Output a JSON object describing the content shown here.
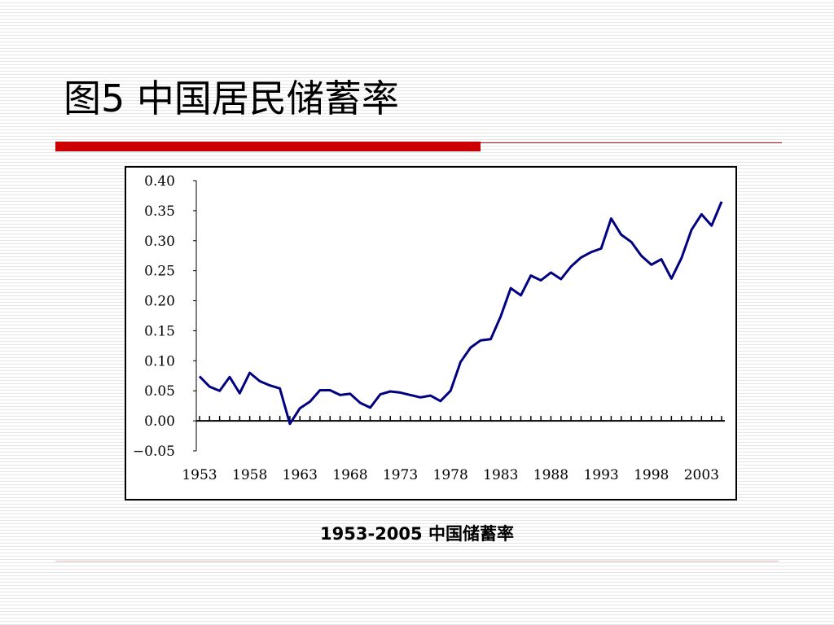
{
  "slide": {
    "title": "图5 中国居民储蓄率",
    "caption": "1953-2005 中国储蓄率"
  },
  "colors": {
    "accent": "#cc0000",
    "line": "#000080"
  },
  "chart_data": {
    "type": "line",
    "title": "",
    "xlabel": "",
    "ylabel": "",
    "x": [
      1953,
      1954,
      1955,
      1956,
      1957,
      1958,
      1959,
      1960,
      1961,
      1962,
      1963,
      1964,
      1965,
      1966,
      1967,
      1968,
      1969,
      1970,
      1971,
      1972,
      1973,
      1974,
      1975,
      1976,
      1977,
      1978,
      1979,
      1980,
      1981,
      1982,
      1983,
      1984,
      1985,
      1986,
      1987,
      1988,
      1989,
      1990,
      1991,
      1992,
      1993,
      1994,
      1995,
      1996,
      1997,
      1998,
      1999,
      2000,
      2001,
      2002,
      2003,
      2004,
      2005
    ],
    "series": [
      {
        "values": [
          0.074,
          0.057,
          0.05,
          0.073,
          0.046,
          0.08,
          0.066,
          0.059,
          0.054,
          -0.005,
          0.021,
          0.032,
          0.051,
          0.051,
          0.043,
          0.045,
          0.03,
          0.022,
          0.044,
          0.049,
          0.047,
          0.043,
          0.039,
          0.042,
          0.033,
          0.05,
          0.098,
          0.122,
          0.134,
          0.136,
          0.174,
          0.221,
          0.209,
          0.242,
          0.234,
          0.247,
          0.236,
          0.257,
          0.272,
          0.281,
          0.287,
          0.337,
          0.31,
          0.298,
          0.275,
          0.26,
          0.269,
          0.237,
          0.271,
          0.318,
          0.344,
          0.325,
          0.365
        ]
      }
    ],
    "ylim": [
      -0.05,
      0.4
    ],
    "yticks": [
      "0.40",
      "0.35",
      "0.30",
      "0.25",
      "0.20",
      "0.15",
      "0.10",
      "0.05",
      "0.00",
      "−0.05"
    ],
    "xticks": [
      "1953",
      "1958",
      "1963",
      "1968",
      "1973",
      "1978",
      "1983",
      "1988",
      "1993",
      "1998",
      "2003"
    ],
    "grid": false,
    "legend": "none"
  }
}
